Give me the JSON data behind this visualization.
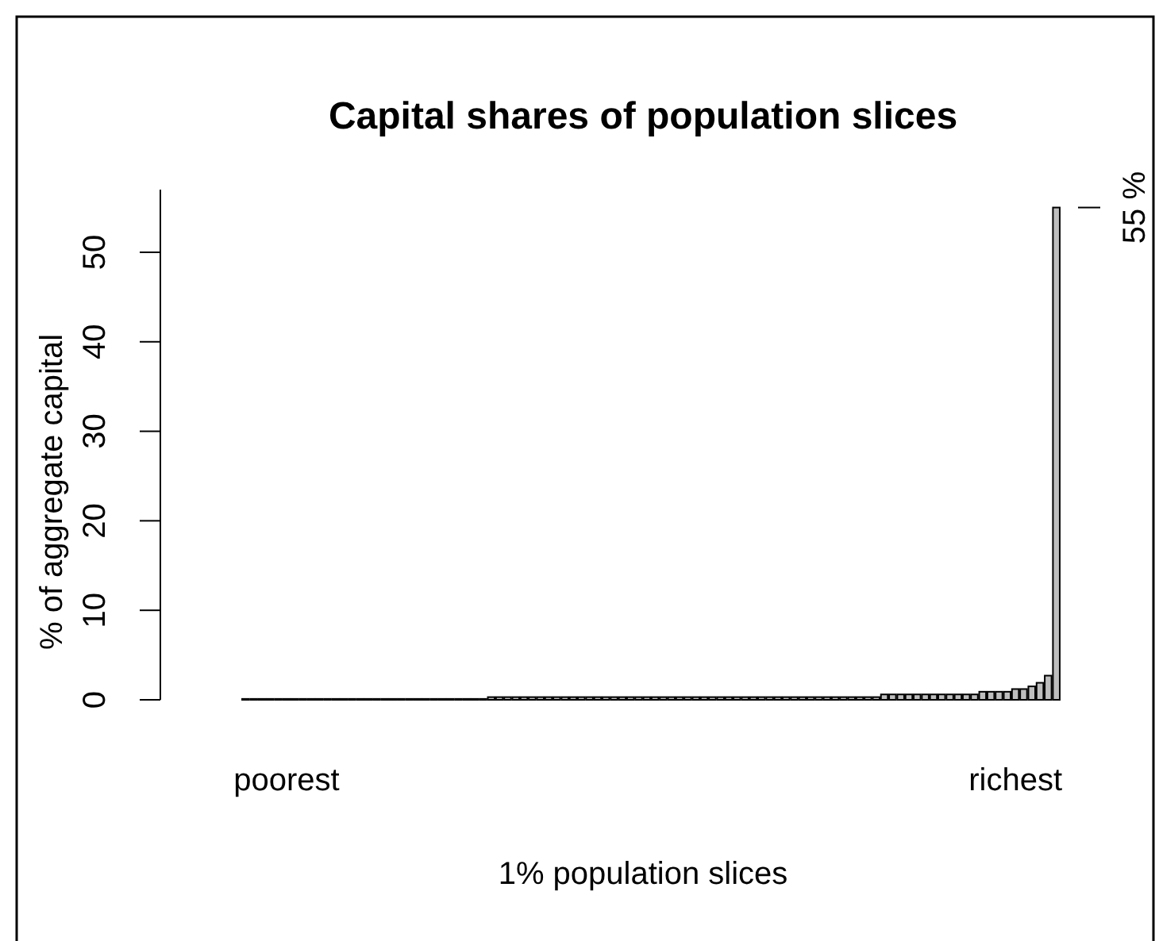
{
  "chart_data": {
    "type": "bar",
    "title": "Capital shares of population slices",
    "xlabel": "1% population slices",
    "ylabel": "% of aggregate capital",
    "categories": [
      null,
      null,
      null,
      null,
      null,
      "poorest",
      null,
      null,
      null,
      null,
      null,
      null,
      null,
      null,
      null,
      null,
      null,
      null,
      null,
      null,
      null,
      null,
      null,
      null,
      null,
      null,
      null,
      null,
      null,
      null,
      null,
      null,
      null,
      null,
      null,
      null,
      null,
      null,
      null,
      null,
      null,
      null,
      null,
      null,
      null,
      null,
      null,
      null,
      null,
      null,
      null,
      null,
      null,
      null,
      null,
      null,
      null,
      null,
      null,
      null,
      null,
      null,
      null,
      null,
      null,
      null,
      null,
      null,
      null,
      null,
      null,
      null,
      null,
      null,
      null,
      null,
      null,
      null,
      null,
      null,
      null,
      null,
      null,
      null,
      null,
      null,
      null,
      null,
      null,
      null,
      null,
      null,
      null,
      null,
      "richest",
      null,
      null,
      null,
      null,
      null
    ],
    "values": [
      0.1,
      0.1,
      0.1,
      0.1,
      0.1,
      0.1,
      0.1,
      0.1,
      0.1,
      0.1,
      0.1,
      0.1,
      0.1,
      0.1,
      0.1,
      0.1,
      0.1,
      0.1,
      0.1,
      0.1,
      0.1,
      0.1,
      0.1,
      0.1,
      0.1,
      0.1,
      0.1,
      0.1,
      0.1,
      0.1,
      0.3,
      0.3,
      0.3,
      0.3,
      0.3,
      0.3,
      0.3,
      0.3,
      0.3,
      0.3,
      0.3,
      0.3,
      0.3,
      0.3,
      0.3,
      0.3,
      0.3,
      0.3,
      0.3,
      0.3,
      0.3,
      0.3,
      0.3,
      0.3,
      0.3,
      0.3,
      0.3,
      0.3,
      0.3,
      0.3,
      0.3,
      0.3,
      0.3,
      0.3,
      0.3,
      0.3,
      0.3,
      0.3,
      0.3,
      0.3,
      0.3,
      0.3,
      0.3,
      0.3,
      0.3,
      0.3,
      0.3,
      0.3,
      0.6,
      0.6,
      0.6,
      0.6,
      0.6,
      0.6,
      0.6,
      0.6,
      0.6,
      0.6,
      0.6,
      0.6,
      0.9,
      0.9,
      0.9,
      0.9,
      1.2,
      1.2,
      1.5,
      1.9,
      2.7,
      55
    ],
    "color": "#bebebe",
    "ylim": [
      0,
      57
    ],
    "yticks": [
      0,
      10,
      20,
      30,
      40,
      50
    ],
    "annotations": [
      "55 %"
    ]
  }
}
